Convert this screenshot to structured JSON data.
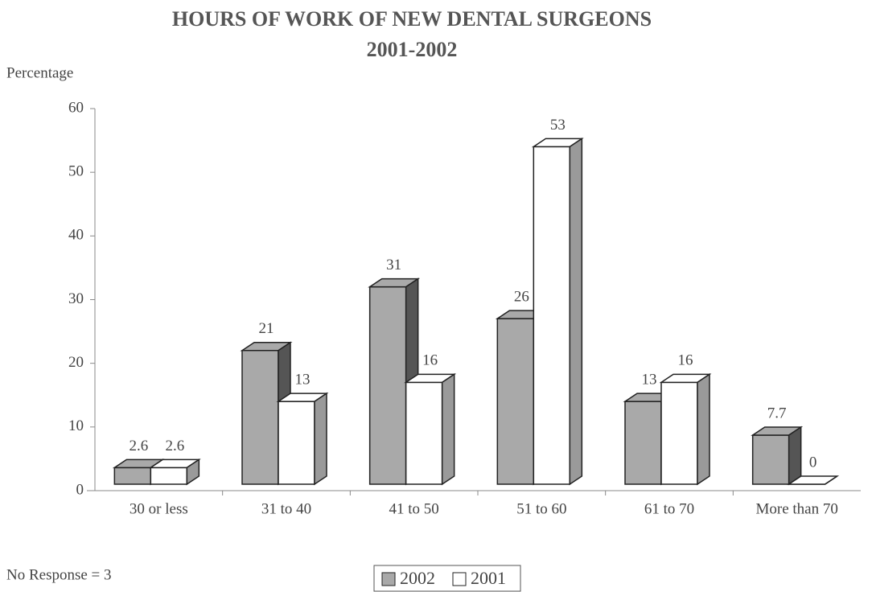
{
  "chart_data": {
    "type": "bar3d",
    "title": "HOURS OF WORK OF NEW DENTAL SURGEONS",
    "subtitle": "2001-2002",
    "y_label": "Percentage",
    "annotation": "No Response = 3",
    "categories": [
      "30 or less",
      "31 to 40",
      "41 to 50",
      "51 to 60",
      "61 to 70",
      "More than 70"
    ],
    "series": [
      {
        "name": "2002",
        "color": "#a9a9a9",
        "values": [
          2.6,
          21,
          31,
          26,
          13,
          7.7
        ]
      },
      {
        "name": "2001",
        "color": "#ffffff",
        "values": [
          2.6,
          13,
          16,
          53,
          16,
          0
        ]
      }
    ],
    "ylim": [
      0,
      60
    ],
    "yticks": [
      0,
      10,
      20,
      30,
      40,
      50,
      60
    ],
    "legend": "bottom"
  }
}
